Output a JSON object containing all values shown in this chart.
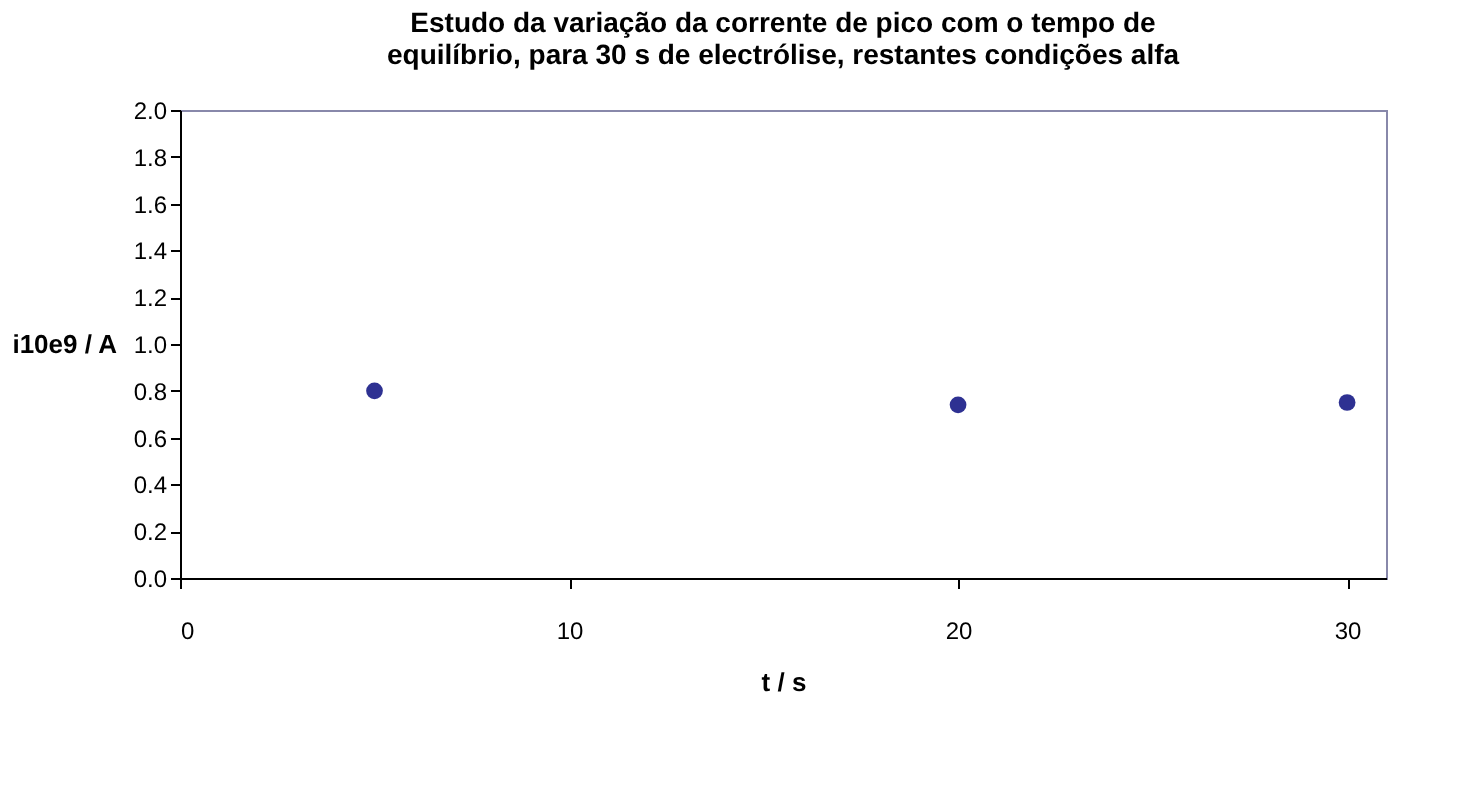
{
  "chart_data": {
    "type": "scatter",
    "title": "Estudo da variação da corrente de pico com o tempo de equilíbrio, para 30 s de electrólise, restantes condições alfa",
    "xlabel": "t / s",
    "ylabel": "i10e9 / A",
    "x": [
      5,
      20,
      30
    ],
    "series": [
      {
        "color": "#2e3192",
        "values": [
          0.8,
          0.74,
          0.75
        ]
      }
    ],
    "xlim": [
      0,
      31
    ],
    "xticks": [
      0,
      10,
      20,
      30
    ],
    "ylim": [
      0,
      2
    ],
    "yticks": [
      {
        "value": 0,
        "label": "0.0"
      },
      {
        "value": 0.2,
        "label": "0.2"
      },
      {
        "value": 0.4,
        "label": "0.4"
      },
      {
        "value": 0.6,
        "label": "0.6"
      },
      {
        "value": 0.8,
        "label": "0.8"
      },
      {
        "value": 1,
        "label": "1.0"
      },
      {
        "value": 1.2,
        "label": "1.2"
      },
      {
        "value": 1.4,
        "label": "1.4"
      },
      {
        "value": 1.6,
        "label": "1.6"
      },
      {
        "value": 1.8,
        "label": "1.8"
      },
      {
        "value": 2,
        "label": "2.0"
      }
    ],
    "grid": false,
    "legend": false,
    "marker": "circle"
  }
}
